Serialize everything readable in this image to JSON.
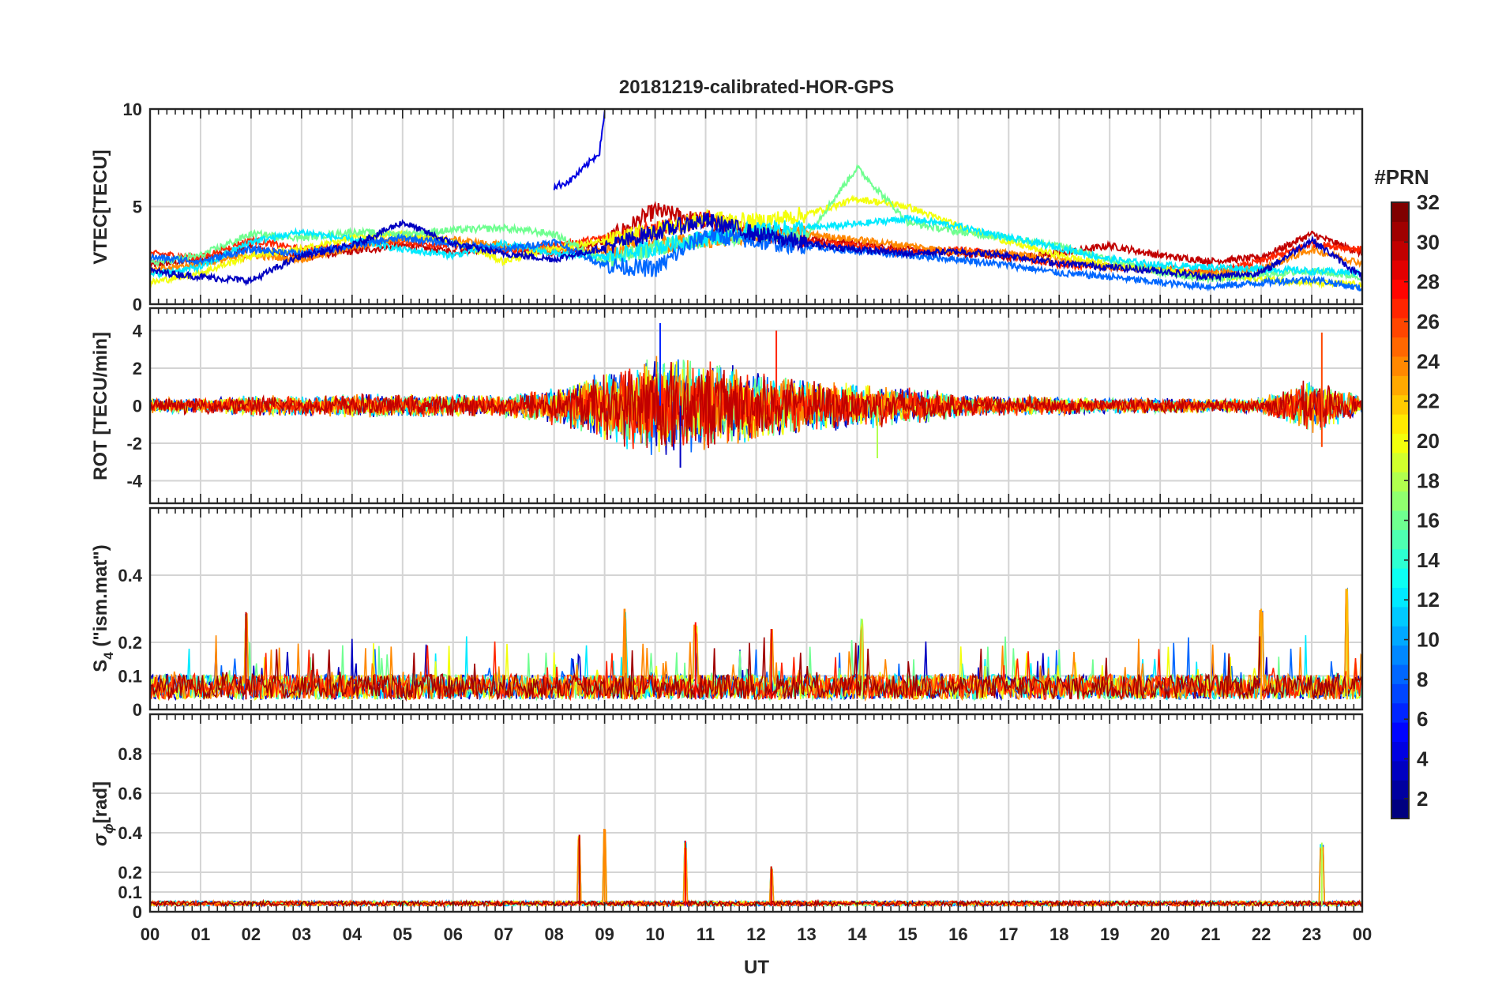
{
  "title": "20181219-calibrated-HOR-GPS",
  "xlabel": "UT",
  "x_ticks": [
    "00",
    "01",
    "02",
    "03",
    "04",
    "05",
    "06",
    "07",
    "08",
    "09",
    "10",
    "11",
    "12",
    "13",
    "14",
    "15",
    "16",
    "17",
    "18",
    "19",
    "20",
    "21",
    "22",
    "23",
    "00"
  ],
  "colorbar": {
    "label": "#PRN",
    "ticks": [
      "2",
      "4",
      "6",
      "8",
      "10",
      "12",
      "14",
      "16",
      "18",
      "20",
      "22",
      "24",
      "26",
      "28",
      "30",
      "32"
    ],
    "range": [
      1,
      32
    ],
    "colormap": "jet"
  },
  "panels": [
    {
      "ylabel": "VTEC[TECU]",
      "ylim": [
        0,
        10
      ],
      "y_ticks": [
        0,
        5,
        10
      ]
    },
    {
      "ylabel": "ROT [TECU/min]",
      "ylim": [
        -5.2,
        5.2
      ],
      "y_ticks": [
        -4,
        -2,
        0,
        2,
        4
      ]
    },
    {
      "ylabel_main": "S",
      "ylabel_sub": "4",
      "ylabel_rest": " (\"ism.mat\")",
      "ylim": [
        0,
        0.6
      ],
      "y_ticks": [
        0,
        0.1,
        0.2,
        0.4
      ]
    },
    {
      "ylabel_main": "σ",
      "ylabel_sub": "ϕ",
      "ylabel_rest": "[rad]",
      "ylim": [
        0,
        1.0
      ],
      "y_ticks": [
        0,
        0.1,
        0.2,
        0.4,
        0.6,
        0.8
      ]
    }
  ],
  "chart_data": {
    "type": "line",
    "title": "20181219-calibrated-HOR-GPS",
    "xlabel": "UT",
    "x_unit": "hour",
    "xlim": [
      0,
      24
    ],
    "grid": true,
    "legend": "colorbar right (#PRN, 1–32)",
    "panels": [
      {
        "ylabel": "VTEC[TECU]",
        "ylim": [
          0,
          10
        ],
        "series": [
          {
            "prn": 30,
            "x": [
              0,
              1,
              2,
              3,
              4,
              5,
              6,
              7,
              8,
              9,
              10,
              11,
              12,
              13,
              14,
              15,
              16,
              17,
              18,
              19,
              20,
              21,
              22,
              23,
              24
            ],
            "y": [
              2.0,
              2.3,
              2.9,
              2.4,
              2.7,
              3.0,
              2.7,
              2.9,
              2.6,
              3.2,
              4.8,
              4.2,
              3.8,
              3.4,
              3.1,
              2.8,
              2.6,
              2.4,
              2.6,
              3.0,
              2.5,
              2.2,
              2.4,
              3.6,
              2.6
            ]
          },
          {
            "prn": 27,
            "x": [
              0,
              1,
              2,
              3,
              4,
              5,
              6,
              7,
              8,
              9,
              10,
              11,
              12,
              13,
              14,
              15,
              16,
              17,
              18,
              19,
              20,
              21,
              22,
              23,
              24
            ],
            "y": [
              2.6,
              2.4,
              3.3,
              2.8,
              3.0,
              3.2,
              3.0,
              2.7,
              3.0,
              3.4,
              3.8,
              4.4,
              3.6,
              3.2,
              3.0,
              2.6,
              2.8,
              2.5,
              2.0,
              1.9,
              1.8,
              1.6,
              2.2,
              3.1,
              2.8
            ]
          },
          {
            "prn": 24,
            "x": [
              0,
              1,
              2,
              3,
              4,
              5,
              6,
              7,
              8,
              9,
              10,
              11,
              12,
              13,
              14,
              15,
              16,
              17,
              18,
              19,
              20,
              21,
              22,
              23,
              24
            ],
            "y": [
              1.7,
              2.1,
              2.5,
              2.3,
              2.9,
              3.4,
              3.3,
              3.0,
              2.8,
              2.7,
              3.0,
              3.3,
              3.5,
              3.6,
              3.3,
              3.0,
              2.7,
              2.6,
              2.3,
              1.9,
              1.8,
              1.6,
              1.8,
              2.8,
              2.1
            ]
          },
          {
            "prn": 20,
            "x": [
              0,
              1,
              2,
              3,
              4,
              5,
              6,
              7,
              8,
              9,
              10,
              11,
              12,
              13,
              14,
              15,
              16,
              17,
              18,
              19,
              20,
              21,
              22,
              23,
              24
            ],
            "y": [
              1.1,
              1.6,
              2.5,
              2.8,
              3.4,
              3.6,
              3.2,
              2.2,
              2.9,
              3.2,
              3.8,
              4.4,
              4.2,
              4.6,
              5.4,
              5.0,
              4.0,
              3.2,
              2.5,
              2.0,
              1.8,
              1.4,
              1.3,
              1.1,
              1.0
            ]
          },
          {
            "prn": 16,
            "x": [
              0,
              1,
              2,
              3,
              4,
              5,
              6,
              7,
              8,
              9,
              10,
              11,
              12,
              13,
              14,
              15,
              16,
              17,
              18,
              19,
              20,
              21,
              22,
              23,
              24
            ],
            "y": [
              2.1,
              2.5,
              3.6,
              3.4,
              3.7,
              3.6,
              3.8,
              3.9,
              3.6,
              2.2,
              2.9,
              3.3,
              3.6,
              3.5,
              7.0,
              4.2,
              3.7,
              3.4,
              3.0,
              2.3,
              1.6,
              1.3,
              1.5,
              1.7,
              1.4
            ]
          },
          {
            "prn": 12,
            "x": [
              0,
              1,
              2,
              3,
              4,
              5,
              6,
              7,
              8,
              9,
              10,
              11,
              12,
              13,
              14,
              15,
              16,
              17,
              18,
              19,
              20,
              21,
              22,
              23,
              24
            ],
            "y": [
              1.5,
              1.9,
              3.2,
              3.7,
              3.3,
              2.8,
              2.5,
              3.1,
              2.6,
              2.4,
              2.9,
              3.4,
              3.8,
              3.9,
              4.1,
              4.4,
              4.0,
              3.4,
              2.9,
              2.3,
              2.0,
              1.9,
              1.8,
              1.7,
              1.6
            ]
          },
          {
            "prn": 8,
            "x": [
              0,
              1,
              2,
              3,
              4,
              5,
              6,
              7,
              8,
              9,
              10,
              11,
              12,
              13,
              14,
              15,
              16,
              17,
              18,
              19,
              20,
              21,
              22,
              23,
              24
            ],
            "y": [
              2.4,
              2.2,
              2.8,
              2.6,
              3.0,
              3.4,
              3.1,
              2.8,
              3.2,
              2.0,
              1.8,
              3.6,
              3.2,
              3.0,
              2.7,
              2.5,
              2.3,
              2.0,
              1.6,
              1.4,
              1.1,
              0.9,
              1.1,
              1.3,
              0.8
            ]
          },
          {
            "prn": 4,
            "x": [
              8,
              8.3,
              8.6,
              8.9,
              9.0
            ],
            "y": [
              6.0,
              6.3,
              7.0,
              7.8,
              9.9
            ]
          },
          {
            "prn": 3,
            "x": [
              0,
              1,
              2,
              3,
              4,
              5,
              6,
              7,
              8,
              9,
              10,
              11,
              12,
              13,
              14,
              15,
              16,
              17,
              18,
              19,
              20,
              21,
              22,
              23,
              24
            ],
            "y": [
              1.7,
              1.4,
              1.2,
              2.5,
              3.0,
              4.2,
              3.1,
              2.6,
              2.3,
              2.9,
              3.7,
              4.3,
              3.6,
              3.1,
              2.8,
              2.6,
              2.7,
              2.5,
              2.1,
              1.9,
              1.7,
              1.4,
              1.6,
              3.3,
              1.4
            ]
          }
        ]
      },
      {
        "ylabel": "ROT [TECU/min]",
        "ylim": [
          -5.2,
          5.2
        ],
        "envelope": {
          "x": [
            0,
            1,
            2,
            3,
            4,
            5,
            6,
            7,
            8,
            9,
            10,
            11,
            12,
            13,
            14,
            15,
            16,
            17,
            18,
            19,
            20,
            21,
            22,
            23,
            24
          ],
          "amplitude": [
            0.45,
            0.45,
            0.6,
            0.55,
            0.7,
            0.65,
            0.65,
            0.6,
            1.1,
            1.9,
            3.0,
            2.6,
            2.0,
            1.5,
            1.3,
            1.1,
            0.7,
            0.55,
            0.55,
            0.45,
            0.45,
            0.4,
            0.45,
            1.6,
            0.5
          ]
        },
        "peaks": [
          {
            "x": 10.1,
            "y": 4.4
          },
          {
            "x": 12.4,
            "y": 4.0
          },
          {
            "x": 23.2,
            "y": 3.9
          },
          {
            "x": 10.5,
            "y": -3.3
          },
          {
            "x": 23.2,
            "y": -2.2
          },
          {
            "x": 14.4,
            "y": -2.8
          }
        ]
      },
      {
        "ylabel": "S4",
        "ylim": [
          0,
          0.6
        ],
        "peaks": [
          {
            "x": 1.9,
            "y": 0.29
          },
          {
            "x": 9.4,
            "y": 0.3
          },
          {
            "x": 10.8,
            "y": 0.26
          },
          {
            "x": 12.3,
            "y": 0.24
          },
          {
            "x": 14.1,
            "y": 0.27
          },
          {
            "x": 22.0,
            "y": 0.3
          },
          {
            "x": 23.7,
            "y": 0.36
          }
        ],
        "baseline": 0.03
      },
      {
        "ylabel": "σϕ[rad]",
        "ylim": [
          0,
          1.0
        ],
        "peaks": [
          {
            "x": 8.5,
            "y": 0.39
          },
          {
            "x": 9.0,
            "y": 0.42
          },
          {
            "x": 10.6,
            "y": 0.36
          },
          {
            "x": 12.3,
            "y": 0.23
          },
          {
            "x": 23.2,
            "y": 0.35
          }
        ],
        "baseline": 0.03
      }
    ]
  }
}
